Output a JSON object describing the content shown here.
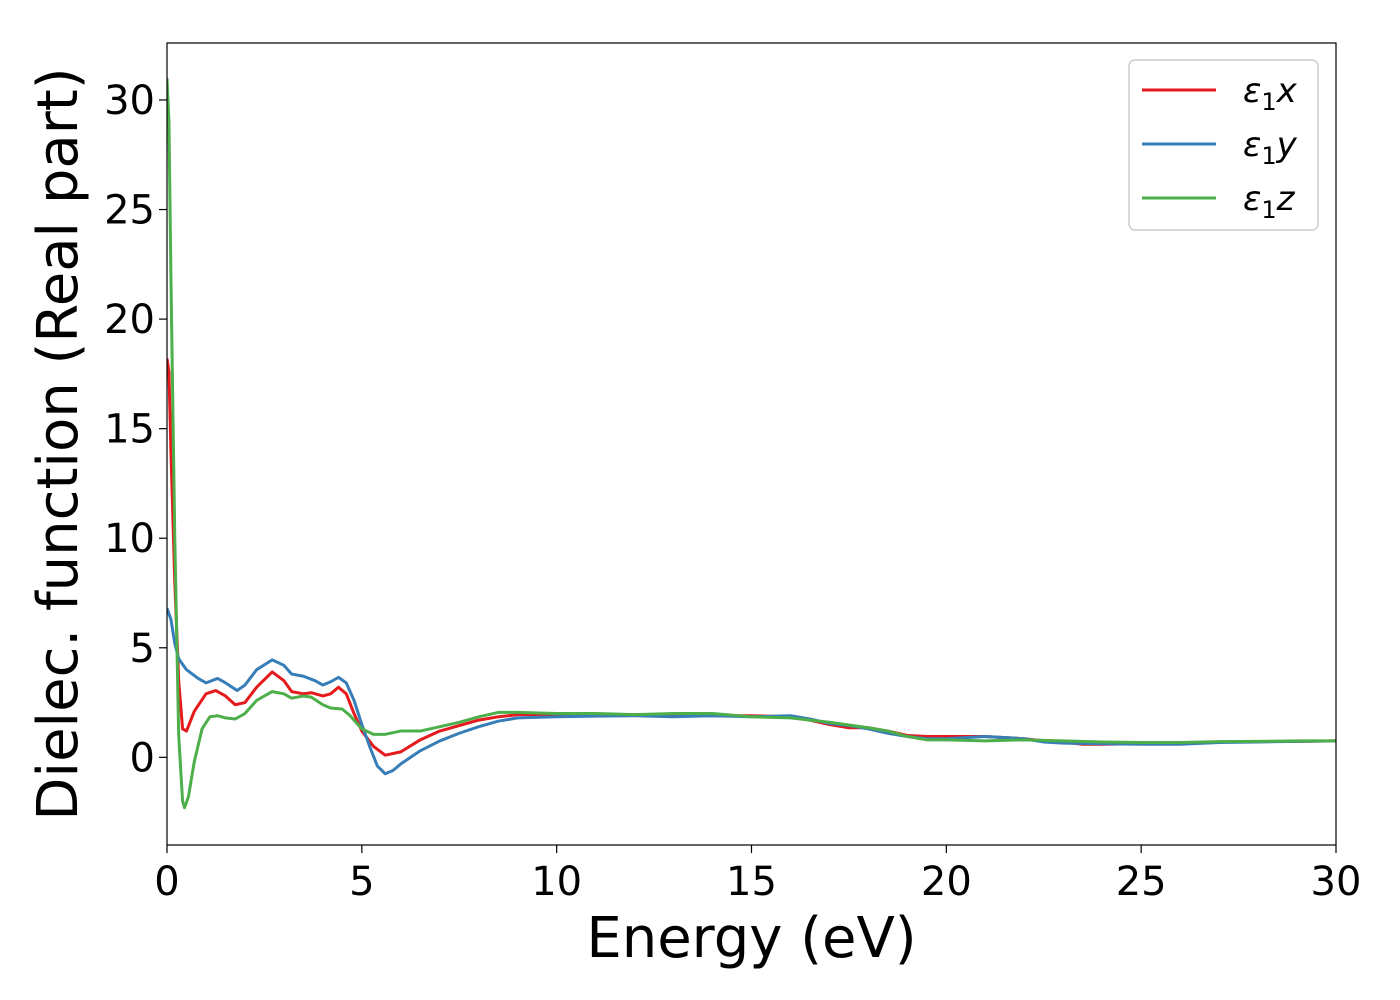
{
  "chart_data": {
    "type": "line",
    "title": "",
    "xlabel": "Energy (eV)",
    "ylabel": "Dielec. function (Real part)",
    "xlim": [
      0,
      30
    ],
    "ylim": [
      -4,
      32.6
    ],
    "xticks": [
      0,
      5,
      10,
      15,
      20,
      25,
      30
    ],
    "yticks": [
      0,
      5,
      10,
      15,
      20,
      25,
      30
    ],
    "grid": false,
    "legend_position": "top-right",
    "series": [
      {
        "name": "ε1x",
        "legend_main": "ε",
        "legend_sub": "1",
        "legend_tail": "x",
        "color": "#e41a1c",
        "points": [
          [
            0,
            18.2
          ],
          [
            0.05,
            17.6
          ],
          [
            0.1,
            14
          ],
          [
            0.2,
            8
          ],
          [
            0.3,
            3.5
          ],
          [
            0.4,
            1.3
          ],
          [
            0.5,
            1.2
          ],
          [
            0.7,
            2.1
          ],
          [
            1.0,
            2.9
          ],
          [
            1.25,
            3.05
          ],
          [
            1.5,
            2.8
          ],
          [
            1.75,
            2.4
          ],
          [
            2.0,
            2.5
          ],
          [
            2.3,
            3.2
          ],
          [
            2.7,
            3.9
          ],
          [
            3.0,
            3.5
          ],
          [
            3.2,
            3.0
          ],
          [
            3.5,
            2.9
          ],
          [
            3.7,
            2.95
          ],
          [
            4.0,
            2.8
          ],
          [
            4.2,
            2.9
          ],
          [
            4.4,
            3.2
          ],
          [
            4.6,
            2.9
          ],
          [
            4.8,
            2.0
          ],
          [
            5.0,
            1.2
          ],
          [
            5.3,
            0.5
          ],
          [
            5.6,
            0.1
          ],
          [
            6.0,
            0.25
          ],
          [
            6.5,
            0.8
          ],
          [
            7.0,
            1.2
          ],
          [
            7.5,
            1.45
          ],
          [
            8.0,
            1.7
          ],
          [
            8.5,
            1.85
          ],
          [
            9.0,
            1.95
          ],
          [
            10,
            1.95
          ],
          [
            11,
            1.95
          ],
          [
            12,
            1.95
          ],
          [
            13,
            1.95
          ],
          [
            14,
            1.9
          ],
          [
            15,
            1.9
          ],
          [
            16,
            1.85
          ],
          [
            16.5,
            1.7
          ],
          [
            17,
            1.5
          ],
          [
            17.5,
            1.35
          ],
          [
            18,
            1.35
          ],
          [
            18.5,
            1.2
          ],
          [
            19,
            1.0
          ],
          [
            19.5,
            0.95
          ],
          [
            20,
            0.95
          ],
          [
            21,
            0.95
          ],
          [
            22,
            0.85
          ],
          [
            22.5,
            0.75
          ],
          [
            23,
            0.7
          ],
          [
            23.5,
            0.6
          ],
          [
            24,
            0.6
          ],
          [
            25,
            0.62
          ],
          [
            26,
            0.65
          ],
          [
            27,
            0.7
          ],
          [
            28,
            0.72
          ],
          [
            29,
            0.73
          ],
          [
            30,
            0.75
          ]
        ]
      },
      {
        "name": "ε1y",
        "legend_main": "ε",
        "legend_sub": "1",
        "legend_tail": "y",
        "color": "#377eb8",
        "points": [
          [
            0,
            6.8
          ],
          [
            0.1,
            6.3
          ],
          [
            0.2,
            5.2
          ],
          [
            0.3,
            4.5
          ],
          [
            0.5,
            4.0
          ],
          [
            0.8,
            3.6
          ],
          [
            1.0,
            3.4
          ],
          [
            1.3,
            3.6
          ],
          [
            1.5,
            3.4
          ],
          [
            1.8,
            3.05
          ],
          [
            2.0,
            3.3
          ],
          [
            2.3,
            4.0
          ],
          [
            2.7,
            4.45
          ],
          [
            3.0,
            4.2
          ],
          [
            3.2,
            3.8
          ],
          [
            3.5,
            3.7
          ],
          [
            3.8,
            3.5
          ],
          [
            4.0,
            3.3
          ],
          [
            4.2,
            3.45
          ],
          [
            4.4,
            3.65
          ],
          [
            4.6,
            3.4
          ],
          [
            4.8,
            2.6
          ],
          [
            5.0,
            1.5
          ],
          [
            5.2,
            0.5
          ],
          [
            5.4,
            -0.4
          ],
          [
            5.6,
            -0.75
          ],
          [
            5.8,
            -0.6
          ],
          [
            6.0,
            -0.3
          ],
          [
            6.5,
            0.3
          ],
          [
            7.0,
            0.75
          ],
          [
            7.5,
            1.1
          ],
          [
            8.0,
            1.4
          ],
          [
            8.5,
            1.65
          ],
          [
            9.0,
            1.8
          ],
          [
            10,
            1.85
          ],
          [
            11,
            1.88
          ],
          [
            12,
            1.9
          ],
          [
            13,
            1.85
          ],
          [
            14,
            1.9
          ],
          [
            15,
            1.85
          ],
          [
            16,
            1.9
          ],
          [
            16.5,
            1.75
          ],
          [
            17,
            1.55
          ],
          [
            17.5,
            1.45
          ],
          [
            18,
            1.3
          ],
          [
            18.5,
            1.1
          ],
          [
            19,
            0.95
          ],
          [
            19.5,
            0.85
          ],
          [
            20,
            0.85
          ],
          [
            21,
            0.95
          ],
          [
            22,
            0.85
          ],
          [
            22.5,
            0.7
          ],
          [
            23,
            0.65
          ],
          [
            24,
            0.62
          ],
          [
            25,
            0.6
          ],
          [
            26,
            0.6
          ],
          [
            27,
            0.68
          ],
          [
            28,
            0.7
          ],
          [
            29,
            0.73
          ],
          [
            30,
            0.75
          ]
        ]
      },
      {
        "name": "ε1z",
        "legend_main": "ε",
        "legend_sub": "1",
        "legend_tail": "z",
        "color": "#4daf4a",
        "points": [
          [
            0,
            31
          ],
          [
            0.05,
            29
          ],
          [
            0.1,
            22
          ],
          [
            0.2,
            10
          ],
          [
            0.3,
            1
          ],
          [
            0.4,
            -2.0
          ],
          [
            0.45,
            -2.3
          ],
          [
            0.55,
            -1.8
          ],
          [
            0.7,
            -0.2
          ],
          [
            0.9,
            1.3
          ],
          [
            1.1,
            1.85
          ],
          [
            1.3,
            1.9
          ],
          [
            1.5,
            1.8
          ],
          [
            1.75,
            1.75
          ],
          [
            2.0,
            2.0
          ],
          [
            2.3,
            2.6
          ],
          [
            2.7,
            3.0
          ],
          [
            3.0,
            2.9
          ],
          [
            3.2,
            2.7
          ],
          [
            3.5,
            2.8
          ],
          [
            3.7,
            2.75
          ],
          [
            4.0,
            2.4
          ],
          [
            4.2,
            2.25
          ],
          [
            4.5,
            2.2
          ],
          [
            4.7,
            1.9
          ],
          [
            5.0,
            1.3
          ],
          [
            5.3,
            1.05
          ],
          [
            5.6,
            1.05
          ],
          [
            6.0,
            1.2
          ],
          [
            6.5,
            1.2
          ],
          [
            7.0,
            1.4
          ],
          [
            7.5,
            1.6
          ],
          [
            8.0,
            1.85
          ],
          [
            8.5,
            2.05
          ],
          [
            9.0,
            2.05
          ],
          [
            10,
            2.0
          ],
          [
            11,
            2.0
          ],
          [
            12,
            1.95
          ],
          [
            13,
            2.0
          ],
          [
            14,
            2.0
          ],
          [
            15,
            1.85
          ],
          [
            16,
            1.8
          ],
          [
            16.5,
            1.7
          ],
          [
            17,
            1.6
          ],
          [
            18,
            1.35
          ],
          [
            18.5,
            1.2
          ],
          [
            19,
            0.95
          ],
          [
            19.5,
            0.8
          ],
          [
            20,
            0.8
          ],
          [
            21,
            0.75
          ],
          [
            22,
            0.8
          ],
          [
            23,
            0.75
          ],
          [
            24,
            0.7
          ],
          [
            25,
            0.68
          ],
          [
            26,
            0.68
          ],
          [
            27,
            0.72
          ],
          [
            28,
            0.73
          ],
          [
            29,
            0.75
          ],
          [
            30,
            0.75
          ]
        ]
      }
    ]
  }
}
